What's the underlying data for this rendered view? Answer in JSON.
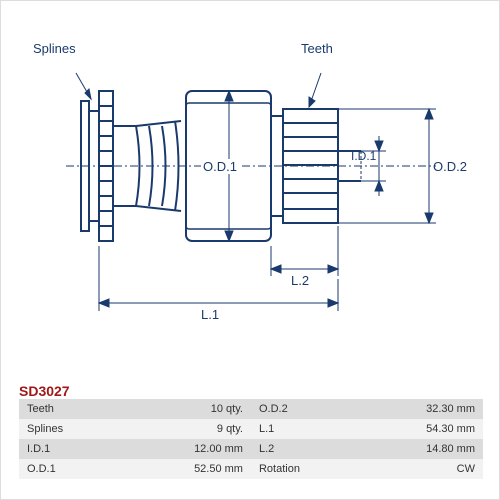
{
  "partCode": "SD3027",
  "labels": {
    "splines": "Splines",
    "teeth": "Teeth",
    "od1": "O.D.1",
    "od2": "O.D.2",
    "id1": "I.D.1",
    "l1": "L.1",
    "l2": "L.2"
  },
  "specs": [
    {
      "l1": "Teeth",
      "v1": "10 qty.",
      "l2": "O.D.2",
      "v2": "32.30 mm"
    },
    {
      "l1": "Splines",
      "v1": "9 qty.",
      "l2": "L.1",
      "v2": "54.30 mm"
    },
    {
      "l1": "I.D.1",
      "v1": "12.00 mm",
      "l2": "L.2",
      "v2": "14.80 mm"
    },
    {
      "l1": "O.D.1",
      "v1": "52.50 mm",
      "l2": "Rotation",
      "v2": "CW"
    }
  ],
  "colors": {
    "stroke": "#1a3a6e",
    "partCode": "#a01818",
    "rowOdd": "#dcdcdc",
    "rowEven": "#f2f2f2"
  }
}
